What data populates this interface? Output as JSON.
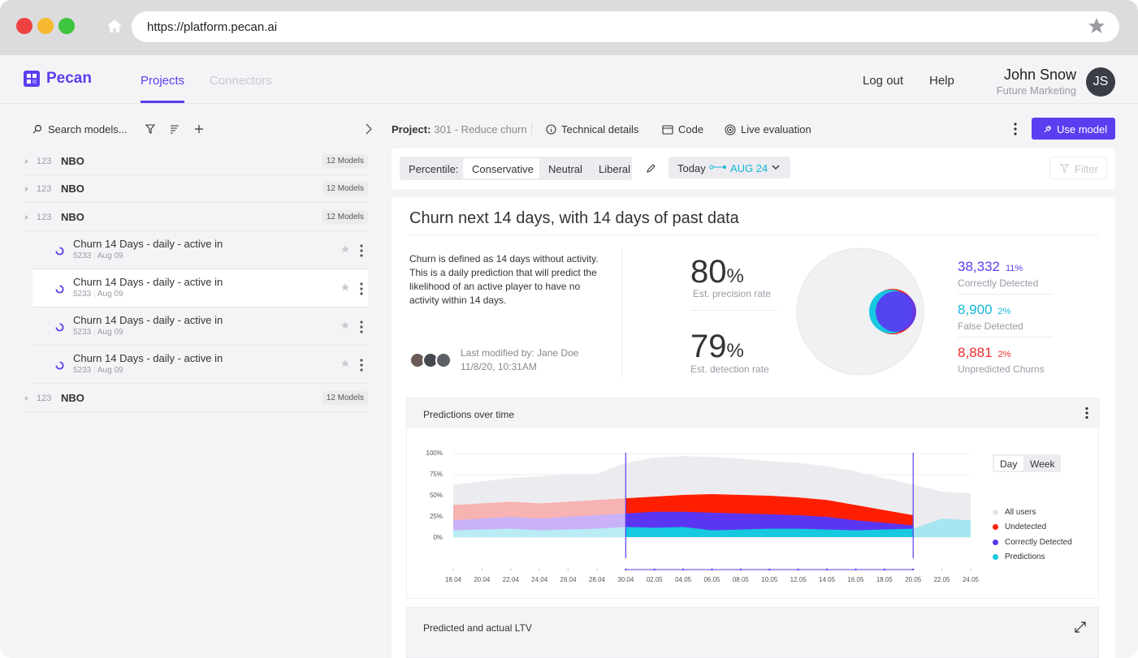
{
  "browser": {
    "url": "https://platform.pecan.ai"
  },
  "nav": {
    "brand": "Pecan",
    "tabs": [
      {
        "label": "Projects",
        "active": true
      },
      {
        "label": "Connectors",
        "active": false
      }
    ],
    "logout": "Log out",
    "help": "Help",
    "user_name": "John Snow",
    "user_role": "Future Marketing",
    "user_initials": "JS"
  },
  "sidebar": {
    "search_label": "Search models...",
    "groups": [
      {
        "num": "123",
        "name": "NBO",
        "badge": "12 Models"
      },
      {
        "num": "123",
        "name": "NBO",
        "badge": "12 Models"
      },
      {
        "num": "123",
        "name": "NBO",
        "badge": "12 Models"
      },
      {
        "num": "123",
        "name": "NBO",
        "badge": "12 Models"
      }
    ],
    "models": [
      {
        "title": "Churn 14 Days - daily - active in",
        "id": "5233",
        "date": "Aug 09"
      },
      {
        "title": "Churn 14 Days - daily - active in",
        "id": "5233",
        "date": "Aug 09"
      },
      {
        "title": "Churn 14 Days - daily - active in",
        "id": "5233",
        "date": "Aug 09"
      },
      {
        "title": "Churn 14 Days - daily - active in",
        "id": "5233",
        "date": "Aug 09"
      }
    ]
  },
  "toolbar": {
    "project_label": "Project:",
    "project_name": "301 - Reduce churn",
    "technical_details": "Technical details",
    "code": "Code",
    "live_evaluation": "Live evaluation",
    "use_model": "Use model"
  },
  "filters": {
    "percentile_label": "Percentile:",
    "options": [
      "Conservative",
      "Neutral",
      "Liberal"
    ],
    "selected": "Conservative",
    "today": "Today",
    "date": "AUG 24",
    "filter": "Filter"
  },
  "summary": {
    "title": "Churn next 14 days, with 14 days of past data",
    "description": "Churn is defined as 14 days without activity. This is a daily prediction that will predict the likelihood of an active player to have no activity within 14 days.",
    "modified_by": "Last modified by: Jane Doe",
    "modified_at": "11/8/20, 10:31AM",
    "precision_value": "80",
    "precision_unit": "%",
    "precision_label": "Est. precision rate",
    "detection_value": "79",
    "detection_unit": "%",
    "detection_label": "Est. detection rate",
    "stats": [
      {
        "value": "38,332",
        "pct": "11%",
        "label": "Correctly Detected",
        "color": "#5b3ef0"
      },
      {
        "value": "8,900",
        "pct": "2%",
        "label": "False Detected",
        "color": "#12b6d8"
      },
      {
        "value": "8,881",
        "pct": "2%",
        "label": "Unpredicted Churns",
        "color": "#ee2c2c"
      }
    ]
  },
  "predictions_panel": {
    "title": "Predictions over time",
    "toggle": [
      "Day",
      "Week"
    ],
    "legend": [
      {
        "label": "All users",
        "color": "#e3e3e8"
      },
      {
        "label": "Undetected",
        "color": "#ff1e00"
      },
      {
        "label": "Correctly Detected",
        "color": "#5b36f2"
      },
      {
        "label": "Predictions",
        "color": "#16c8e0"
      }
    ]
  },
  "ltv_panel": {
    "title": "Predicted and actual LTV"
  },
  "chart_data": {
    "type": "area",
    "x": [
      "18.04",
      "20.04",
      "22.04",
      "24.04",
      "26.04",
      "28.04",
      "30.04",
      "02.05",
      "04.05",
      "06.05",
      "08.05",
      "10.05",
      "12.05",
      "14.05",
      "16.05",
      "18.05",
      "20.05",
      "22.05",
      "24.05"
    ],
    "y_ticks": [
      "100%",
      "75%",
      "50%",
      "25%",
      "0%"
    ],
    "ylim": [
      0,
      100
    ],
    "series": [
      {
        "name": "All users",
        "values": [
          62,
          66,
          70,
          72,
          74,
          75,
          88,
          94,
          96,
          95,
          93,
          90,
          88,
          84,
          78,
          70,
          62,
          54,
          52
        ]
      },
      {
        "name": "Undetected",
        "values": [
          38,
          40,
          42,
          40,
          42,
          44,
          46,
          48,
          50,
          51,
          50,
          49,
          47,
          44,
          38,
          32,
          26,
          22,
          20
        ]
      },
      {
        "name": "Correctly Detected",
        "values": [
          20,
          22,
          24,
          22,
          24,
          26,
          28,
          30,
          30,
          29,
          28,
          27,
          26,
          24,
          20,
          17,
          14,
          22,
          20
        ]
      },
      {
        "name": "Predictions",
        "values": [
          8,
          9,
          10,
          8,
          9,
          10,
          12,
          11,
          12,
          8,
          9,
          10,
          10,
          9,
          8,
          9,
          10,
          22,
          20
        ]
      }
    ]
  }
}
